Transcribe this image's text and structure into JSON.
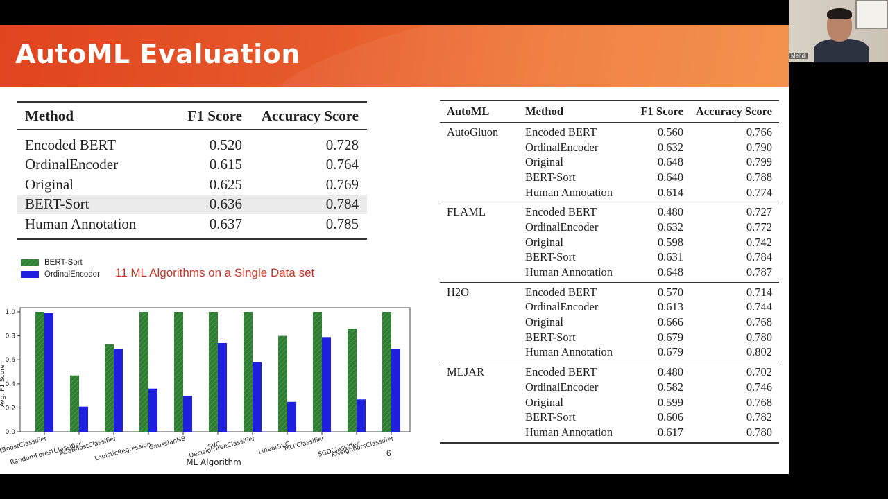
{
  "slide": {
    "title": "AutoML Evaluation",
    "slide_number": "6"
  },
  "left_table": {
    "headers": [
      "Method",
      "F1 Score",
      "Accuracy Score"
    ],
    "rows": [
      [
        "Encoded BERT",
        "0.520",
        "0.728"
      ],
      [
        "OrdinalEncoder",
        "0.615",
        "0.764"
      ],
      [
        "Original",
        "0.625",
        "0.769"
      ],
      [
        "BERT-Sort",
        "0.636",
        "0.784"
      ],
      [
        "Human Annotation",
        "0.637",
        "0.785"
      ]
    ]
  },
  "right_table": {
    "headers": [
      "AutoML",
      "Method",
      "F1 Score",
      "Accuracy Score"
    ],
    "groups": [
      {
        "automl": "AutoGluon",
        "rows": [
          [
            "Encoded BERT",
            "0.560",
            "0.766"
          ],
          [
            "OrdinalEncoder",
            "0.632",
            "0.790"
          ],
          [
            "Original",
            "0.648",
            "0.799"
          ],
          [
            "BERT-Sort",
            "0.640",
            "0.788"
          ],
          [
            "Human Annotation",
            "0.614",
            "0.774"
          ]
        ]
      },
      {
        "automl": "FLAML",
        "rows": [
          [
            "Encoded BERT",
            "0.480",
            "0.727"
          ],
          [
            "OrdinalEncoder",
            "0.632",
            "0.772"
          ],
          [
            "Original",
            "0.598",
            "0.742"
          ],
          [
            "BERT-Sort",
            "0.631",
            "0.784"
          ],
          [
            "Human Annotation",
            "0.648",
            "0.787"
          ]
        ]
      },
      {
        "automl": "H2O",
        "rows": [
          [
            "Encoded BERT",
            "0.570",
            "0.714"
          ],
          [
            "OrdinalEncoder",
            "0.613",
            "0.744"
          ],
          [
            "Original",
            "0.666",
            "0.768"
          ],
          [
            "BERT-Sort",
            "0.679",
            "0.780"
          ],
          [
            "Human Annotation",
            "0.679",
            "0.802"
          ]
        ]
      },
      {
        "automl": "MLJAR",
        "rows": [
          [
            "Encoded BERT",
            "0.480",
            "0.702"
          ],
          [
            "OrdinalEncoder",
            "0.582",
            "0.746"
          ],
          [
            "Original",
            "0.599",
            "0.768"
          ],
          [
            "BERT-Sort",
            "0.606",
            "0.782"
          ],
          [
            "Human Annotation",
            "0.617",
            "0.780"
          ]
        ]
      }
    ]
  },
  "chart_data": {
    "type": "bar",
    "title": "11 ML Algorithms on a Single Data set",
    "xlabel": "ML Algorithm",
    "ylabel": "Avg. F1 Score",
    "ylim": [
      0,
      1.0
    ],
    "yticks": [
      "0.0",
      "0.2",
      "0.4",
      "0.6",
      "0.8",
      "1.0"
    ],
    "categories": [
      "CatBoostClassifier",
      "RandomForestClassifier",
      "AdaBoostClassifier",
      "LogisticRegression",
      "GaussianNB",
      "SVC",
      "DecisionTreeClassifier",
      "LinearSVC",
      "MLPClassifier",
      "SGDClassifier",
      "KNeighborsClassifier"
    ],
    "series": [
      {
        "name": "BERT-Sort",
        "color": "#2e7d32",
        "values": [
          1.0,
          0.47,
          0.73,
          1.0,
          1.0,
          1.0,
          1.0,
          0.8,
          1.0,
          0.86,
          1.0
        ]
      },
      {
        "name": "OrdinalEncoder",
        "color": "#1f1fe0",
        "values": [
          0.99,
          0.21,
          0.69,
          0.36,
          0.3,
          0.74,
          0.58,
          0.25,
          0.79,
          0.27,
          0.69
        ]
      }
    ],
    "legend_position": "top-left"
  },
  "webcam": {
    "participant_name": "Mehdi"
  }
}
